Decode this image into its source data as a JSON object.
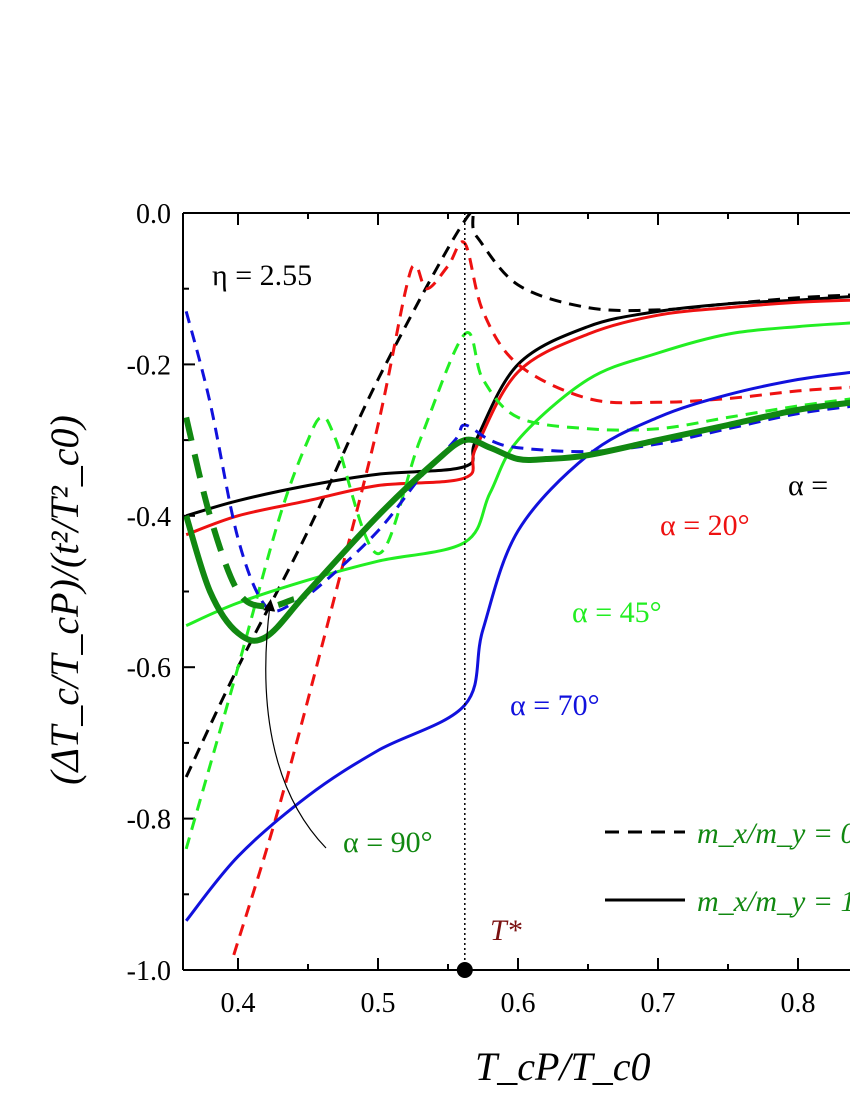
{
  "chart_data": {
    "type": "line",
    "title": "",
    "xlabel": "T_cP/T_c0",
    "ylabel": "(ΔT_c/T_cP)/(t²/T²_c0)",
    "xlim": [
      0.36,
      0.84
    ],
    "ylim": [
      -1.0,
      0.0
    ],
    "x_ticks": [
      "0.4",
      "0.5",
      "0.6",
      "0.7",
      "0.8"
    ],
    "y_ticks": [
      "0.0",
      "-0.2",
      "-0.4",
      "-0.6",
      "-0.8",
      "-1.0"
    ],
    "grid": false,
    "eta_label": "η = 2.55",
    "tstar_label": "T*",
    "tstar_x": 0.562,
    "curve_labels": [
      {
        "text": "α = ",
        "color": "#000000"
      },
      {
        "text": "α = 20°",
        "color": "#ee1111"
      },
      {
        "text": "α = 45°",
        "color": "#22ee22"
      },
      {
        "text": "α = 70°",
        "color": "#1111dd"
      },
      {
        "text": "α = 90°",
        "color": "#118811"
      }
    ],
    "legend": {
      "position": "bottom-right",
      "entries": [
        {
          "label": "m_x/m_y = 0",
          "style": "dashed"
        },
        {
          "label": "m_x/m_y = 1",
          "style": "solid"
        }
      ]
    },
    "series": [
      {
        "color": "#000000",
        "style": "solid",
        "x": [
          0.363,
          0.4,
          0.45,
          0.5,
          0.562,
          0.57,
          0.6,
          0.65,
          0.7,
          0.75,
          0.8,
          0.84
        ],
        "y": [
          -0.4,
          -0.38,
          -0.36,
          -0.345,
          -0.335,
          -0.3,
          -0.2,
          -0.15,
          -0.13,
          -0.12,
          -0.115,
          -0.11
        ]
      },
      {
        "color": "#000000",
        "style": "dashed",
        "x": [
          0.363,
          0.4,
          0.45,
          0.5,
          0.562,
          0.57,
          0.6,
          0.65,
          0.7,
          0.75,
          0.8,
          0.84
        ],
        "y": [
          -0.745,
          -0.6,
          -0.42,
          -0.22,
          -0.01,
          -0.03,
          -0.095,
          -0.125,
          -0.128,
          -0.12,
          -0.112,
          -0.108
        ]
      },
      {
        "color": "#ee1111",
        "style": "solid",
        "x": [
          0.363,
          0.4,
          0.45,
          0.5,
          0.562,
          0.57,
          0.6,
          0.65,
          0.7,
          0.75,
          0.8,
          0.84
        ],
        "y": [
          -0.425,
          -0.4,
          -0.38,
          -0.36,
          -0.35,
          -0.31,
          -0.21,
          -0.16,
          -0.135,
          -0.125,
          -0.118,
          -0.115
        ]
      },
      {
        "color": "#ee1111",
        "style": "dashed",
        "x": [
          0.397,
          0.43,
          0.47,
          0.5,
          0.52,
          0.527,
          0.535,
          0.55,
          0.562,
          0.575,
          0.6,
          0.65,
          0.7,
          0.75,
          0.8,
          0.84
        ],
        "y": [
          -0.98,
          -0.78,
          -0.5,
          -0.28,
          -0.1,
          -0.07,
          -0.1,
          -0.07,
          -0.04,
          -0.13,
          -0.2,
          -0.245,
          -0.25,
          -0.245,
          -0.235,
          -0.23
        ]
      },
      {
        "color": "#22ee22",
        "style": "solid",
        "x": [
          0.363,
          0.4,
          0.45,
          0.5,
          0.562,
          0.58,
          0.6,
          0.65,
          0.7,
          0.75,
          0.8,
          0.84
        ],
        "y": [
          -0.545,
          -0.515,
          -0.485,
          -0.46,
          -0.435,
          -0.37,
          -0.3,
          -0.22,
          -0.185,
          -0.16,
          -0.15,
          -0.145
        ]
      },
      {
        "color": "#22ee22",
        "style": "dashed",
        "x": [
          0.363,
          0.4,
          0.43,
          0.45,
          0.46,
          0.47,
          0.5,
          0.53,
          0.562,
          0.575,
          0.6,
          0.65,
          0.7,
          0.75,
          0.8,
          0.84
        ],
        "y": [
          -0.84,
          -0.6,
          -0.4,
          -0.3,
          -0.27,
          -0.3,
          -0.45,
          -0.3,
          -0.16,
          -0.22,
          -0.27,
          -0.285,
          -0.285,
          -0.27,
          -0.255,
          -0.245
        ]
      },
      {
        "color": "#1111dd",
        "style": "solid",
        "x": [
          0.363,
          0.4,
          0.45,
          0.5,
          0.562,
          0.575,
          0.6,
          0.65,
          0.7,
          0.75,
          0.8,
          0.84
        ],
        "y": [
          -0.935,
          -0.85,
          -0.77,
          -0.71,
          -0.65,
          -0.55,
          -0.42,
          -0.32,
          -0.27,
          -0.24,
          -0.22,
          -0.21
        ]
      },
      {
        "color": "#1111dd",
        "style": "dashed",
        "x": [
          0.363,
          0.38,
          0.4,
          0.42,
          0.44,
          0.46,
          0.5,
          0.53,
          0.555,
          0.562,
          0.58,
          0.6,
          0.65,
          0.7,
          0.75,
          0.8,
          0.84
        ],
        "y": [
          -0.13,
          -0.25,
          -0.43,
          -0.52,
          -0.515,
          -0.49,
          -0.42,
          -0.35,
          -0.3,
          -0.28,
          -0.3,
          -0.31,
          -0.315,
          -0.305,
          -0.285,
          -0.265,
          -0.255
        ]
      },
      {
        "color": "#118811",
        "style": "thick-solid",
        "x": [
          0.363,
          0.38,
          0.4,
          0.42,
          0.45,
          0.5,
          0.54,
          0.562,
          0.58,
          0.6,
          0.62,
          0.65,
          0.7,
          0.75,
          0.8,
          0.84
        ],
        "y": [
          -0.4,
          -0.5,
          -0.555,
          -0.56,
          -0.5,
          -0.4,
          -0.33,
          -0.3,
          -0.31,
          -0.325,
          -0.325,
          -0.32,
          -0.3,
          -0.28,
          -0.26,
          -0.25
        ]
      },
      {
        "color": "#118811",
        "style": "thick-dashed",
        "x": [
          0.363,
          0.38,
          0.4,
          0.42,
          0.44
        ],
        "y": [
          -0.27,
          -0.4,
          -0.5,
          -0.52,
          -0.51
        ]
      }
    ]
  }
}
